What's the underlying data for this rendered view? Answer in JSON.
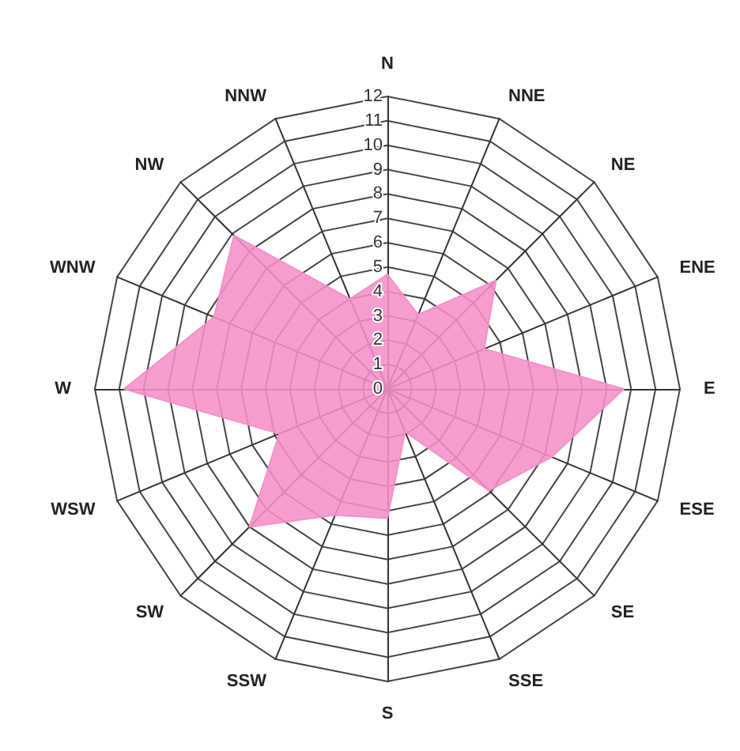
{
  "chart_data": {
    "type": "radar",
    "categories": [
      "N",
      "NNE",
      "NE",
      "ENE",
      "E",
      "ESE",
      "SE",
      "SSE",
      "S",
      "SSW",
      "SW",
      "WSW",
      "W",
      "WNW",
      "NW",
      "NNW"
    ],
    "series": [
      {
        "color": "#f590c8",
        "values": [
          4.7,
          3.3,
          6.3,
          4.3,
          9.7,
          7.3,
          5.9,
          1.9,
          5.3,
          5.6,
          8.0,
          4.8,
          10.8,
          7.7,
          8.9,
          4.0
        ]
      }
    ],
    "ylim": [
      0,
      12
    ],
    "yticks": [
      0,
      1,
      2,
      3,
      4,
      5,
      6,
      7,
      8,
      9,
      10,
      11,
      12
    ],
    "grid": true,
    "marker": "none"
  }
}
